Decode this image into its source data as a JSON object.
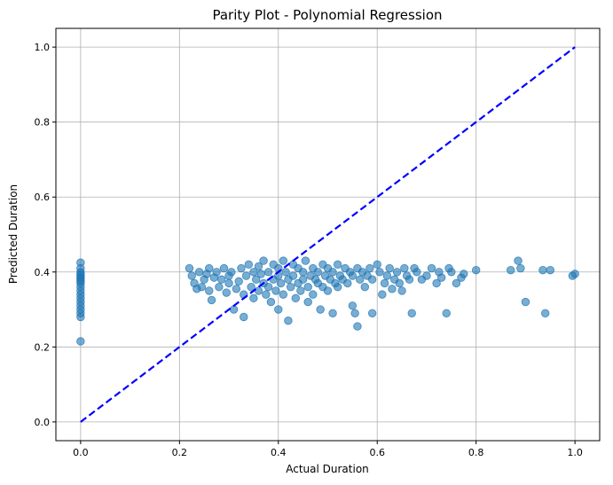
{
  "chart_data": {
    "type": "scatter",
    "title": "Parity Plot - Polynomial Regression",
    "xlabel": "Actual Duration",
    "ylabel": "Predicted Duration",
    "xlim": [
      -0.05,
      1.05
    ],
    "ylim": [
      -0.05,
      1.05
    ],
    "xticks": [
      0.0,
      0.2,
      0.4,
      0.6,
      0.8,
      1.0
    ],
    "yticks": [
      0.0,
      0.2,
      0.4,
      0.6,
      0.8,
      1.0
    ],
    "xtick_labels": [
      "0.0",
      "0.2",
      "0.4",
      "0.6",
      "0.8",
      "1.0"
    ],
    "ytick_labels": [
      "0.0",
      "0.2",
      "0.4",
      "0.6",
      "0.8",
      "1.0"
    ],
    "grid": true,
    "point_color": "#1f77b4",
    "point_alpha": 0.6,
    "reference_line": {
      "x": [
        0,
        1
      ],
      "y": [
        0,
        1
      ],
      "color": "#0000ff",
      "style": "dashed"
    },
    "points": [
      [
        0.0,
        0.425
      ],
      [
        0.0,
        0.41
      ],
      [
        0.0,
        0.4
      ],
      [
        0.0,
        0.395
      ],
      [
        0.0,
        0.39
      ],
      [
        0.0,
        0.385
      ],
      [
        0.0,
        0.38
      ],
      [
        0.0,
        0.375
      ],
      [
        0.0,
        0.37
      ],
      [
        0.0,
        0.36
      ],
      [
        0.0,
        0.35
      ],
      [
        0.0,
        0.34
      ],
      [
        0.0,
        0.33
      ],
      [
        0.0,
        0.32
      ],
      [
        0.0,
        0.31
      ],
      [
        0.0,
        0.3
      ],
      [
        0.0,
        0.29
      ],
      [
        0.0,
        0.28
      ],
      [
        0.0,
        0.215
      ],
      [
        0.22,
        0.41
      ],
      [
        0.225,
        0.39
      ],
      [
        0.23,
        0.37
      ],
      [
        0.235,
        0.355
      ],
      [
        0.24,
        0.4
      ],
      [
        0.245,
        0.36
      ],
      [
        0.25,
        0.38
      ],
      [
        0.255,
        0.395
      ],
      [
        0.26,
        0.35
      ],
      [
        0.26,
        0.41
      ],
      [
        0.265,
        0.325
      ],
      [
        0.27,
        0.385
      ],
      [
        0.275,
        0.4
      ],
      [
        0.28,
        0.36
      ],
      [
        0.285,
        0.38
      ],
      [
        0.29,
        0.41
      ],
      [
        0.295,
        0.345
      ],
      [
        0.3,
        0.39
      ],
      [
        0.3,
        0.37
      ],
      [
        0.305,
        0.4
      ],
      [
        0.31,
        0.3
      ],
      [
        0.315,
        0.355
      ],
      [
        0.32,
        0.375
      ],
      [
        0.325,
        0.41
      ],
      [
        0.33,
        0.28
      ],
      [
        0.33,
        0.34
      ],
      [
        0.335,
        0.39
      ],
      [
        0.34,
        0.42
      ],
      [
        0.345,
        0.36
      ],
      [
        0.35,
        0.4
      ],
      [
        0.35,
        0.33
      ],
      [
        0.355,
        0.38
      ],
      [
        0.36,
        0.415
      ],
      [
        0.36,
        0.35
      ],
      [
        0.365,
        0.395
      ],
      [
        0.37,
        0.37
      ],
      [
        0.37,
        0.43
      ],
      [
        0.375,
        0.34
      ],
      [
        0.38,
        0.4
      ],
      [
        0.38,
        0.36
      ],
      [
        0.385,
        0.32
      ],
      [
        0.39,
        0.42
      ],
      [
        0.39,
        0.38
      ],
      [
        0.395,
        0.35
      ],
      [
        0.4,
        0.41
      ],
      [
        0.4,
        0.39
      ],
      [
        0.4,
        0.3
      ],
      [
        0.405,
        0.37
      ],
      [
        0.41,
        0.43
      ],
      [
        0.41,
        0.34
      ],
      [
        0.415,
        0.4
      ],
      [
        0.42,
        0.38
      ],
      [
        0.42,
        0.27
      ],
      [
        0.425,
        0.36
      ],
      [
        0.43,
        0.42
      ],
      [
        0.43,
        0.39
      ],
      [
        0.435,
        0.33
      ],
      [
        0.44,
        0.41
      ],
      [
        0.44,
        0.37
      ],
      [
        0.445,
        0.35
      ],
      [
        0.45,
        0.4
      ],
      [
        0.45,
        0.38
      ],
      [
        0.455,
        0.43
      ],
      [
        0.46,
        0.36
      ],
      [
        0.46,
        0.32
      ],
      [
        0.465,
        0.39
      ],
      [
        0.47,
        0.41
      ],
      [
        0.47,
        0.34
      ],
      [
        0.475,
        0.38
      ],
      [
        0.48,
        0.4
      ],
      [
        0.48,
        0.37
      ],
      [
        0.485,
        0.3
      ],
      [
        0.49,
        0.42
      ],
      [
        0.49,
        0.36
      ],
      [
        0.495,
        0.39
      ],
      [
        0.5,
        0.41
      ],
      [
        0.5,
        0.35
      ],
      [
        0.505,
        0.38
      ],
      [
        0.51,
        0.4
      ],
      [
        0.51,
        0.29
      ],
      [
        0.515,
        0.37
      ],
      [
        0.52,
        0.42
      ],
      [
        0.52,
        0.36
      ],
      [
        0.525,
        0.39
      ],
      [
        0.53,
        0.38
      ],
      [
        0.535,
        0.41
      ],
      [
        0.54,
        0.37
      ],
      [
        0.545,
        0.4
      ],
      [
        0.55,
        0.31
      ],
      [
        0.55,
        0.39
      ],
      [
        0.555,
        0.29
      ],
      [
        0.56,
        0.41
      ],
      [
        0.56,
        0.255
      ],
      [
        0.565,
        0.38
      ],
      [
        0.57,
        0.4
      ],
      [
        0.575,
        0.36
      ],
      [
        0.58,
        0.39
      ],
      [
        0.585,
        0.41
      ],
      [
        0.59,
        0.29
      ],
      [
        0.59,
        0.38
      ],
      [
        0.6,
        0.42
      ],
      [
        0.605,
        0.4
      ],
      [
        0.61,
        0.34
      ],
      [
        0.615,
        0.37
      ],
      [
        0.62,
        0.39
      ],
      [
        0.625,
        0.41
      ],
      [
        0.63,
        0.355
      ],
      [
        0.635,
        0.38
      ],
      [
        0.64,
        0.4
      ],
      [
        0.645,
        0.37
      ],
      [
        0.65,
        0.35
      ],
      [
        0.655,
        0.41
      ],
      [
        0.66,
        0.39
      ],
      [
        0.665,
        0.38
      ],
      [
        0.67,
        0.29
      ],
      [
        0.675,
        0.41
      ],
      [
        0.68,
        0.4
      ],
      [
        0.69,
        0.38
      ],
      [
        0.7,
        0.39
      ],
      [
        0.71,
        0.41
      ],
      [
        0.72,
        0.37
      ],
      [
        0.725,
        0.4
      ],
      [
        0.73,
        0.385
      ],
      [
        0.74,
        0.29
      ],
      [
        0.745,
        0.41
      ],
      [
        0.75,
        0.4
      ],
      [
        0.76,
        0.37
      ],
      [
        0.77,
        0.385
      ],
      [
        0.775,
        0.395
      ],
      [
        0.8,
        0.405
      ],
      [
        0.87,
        0.405
      ],
      [
        0.885,
        0.43
      ],
      [
        0.89,
        0.41
      ],
      [
        0.9,
        0.32
      ],
      [
        0.935,
        0.405
      ],
      [
        0.94,
        0.29
      ],
      [
        0.95,
        0.405
      ],
      [
        0.995,
        0.39
      ],
      [
        1.0,
        0.395
      ]
    ]
  }
}
